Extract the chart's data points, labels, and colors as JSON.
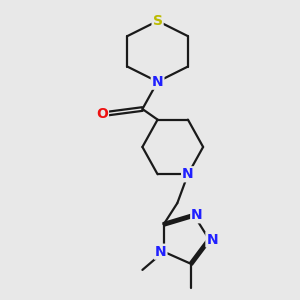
{
  "bg_color": "#e8e8e8",
  "bond_color": "#1a1a1a",
  "N_color": "#2020ff",
  "O_color": "#ee1111",
  "S_color": "#bbbb00",
  "line_width": 1.6,
  "fig_size": [
    3.0,
    3.0
  ],
  "dpi": 100,
  "xlim": [
    -0.5,
    7.0
  ],
  "ylim": [
    -5.5,
    4.2
  ]
}
